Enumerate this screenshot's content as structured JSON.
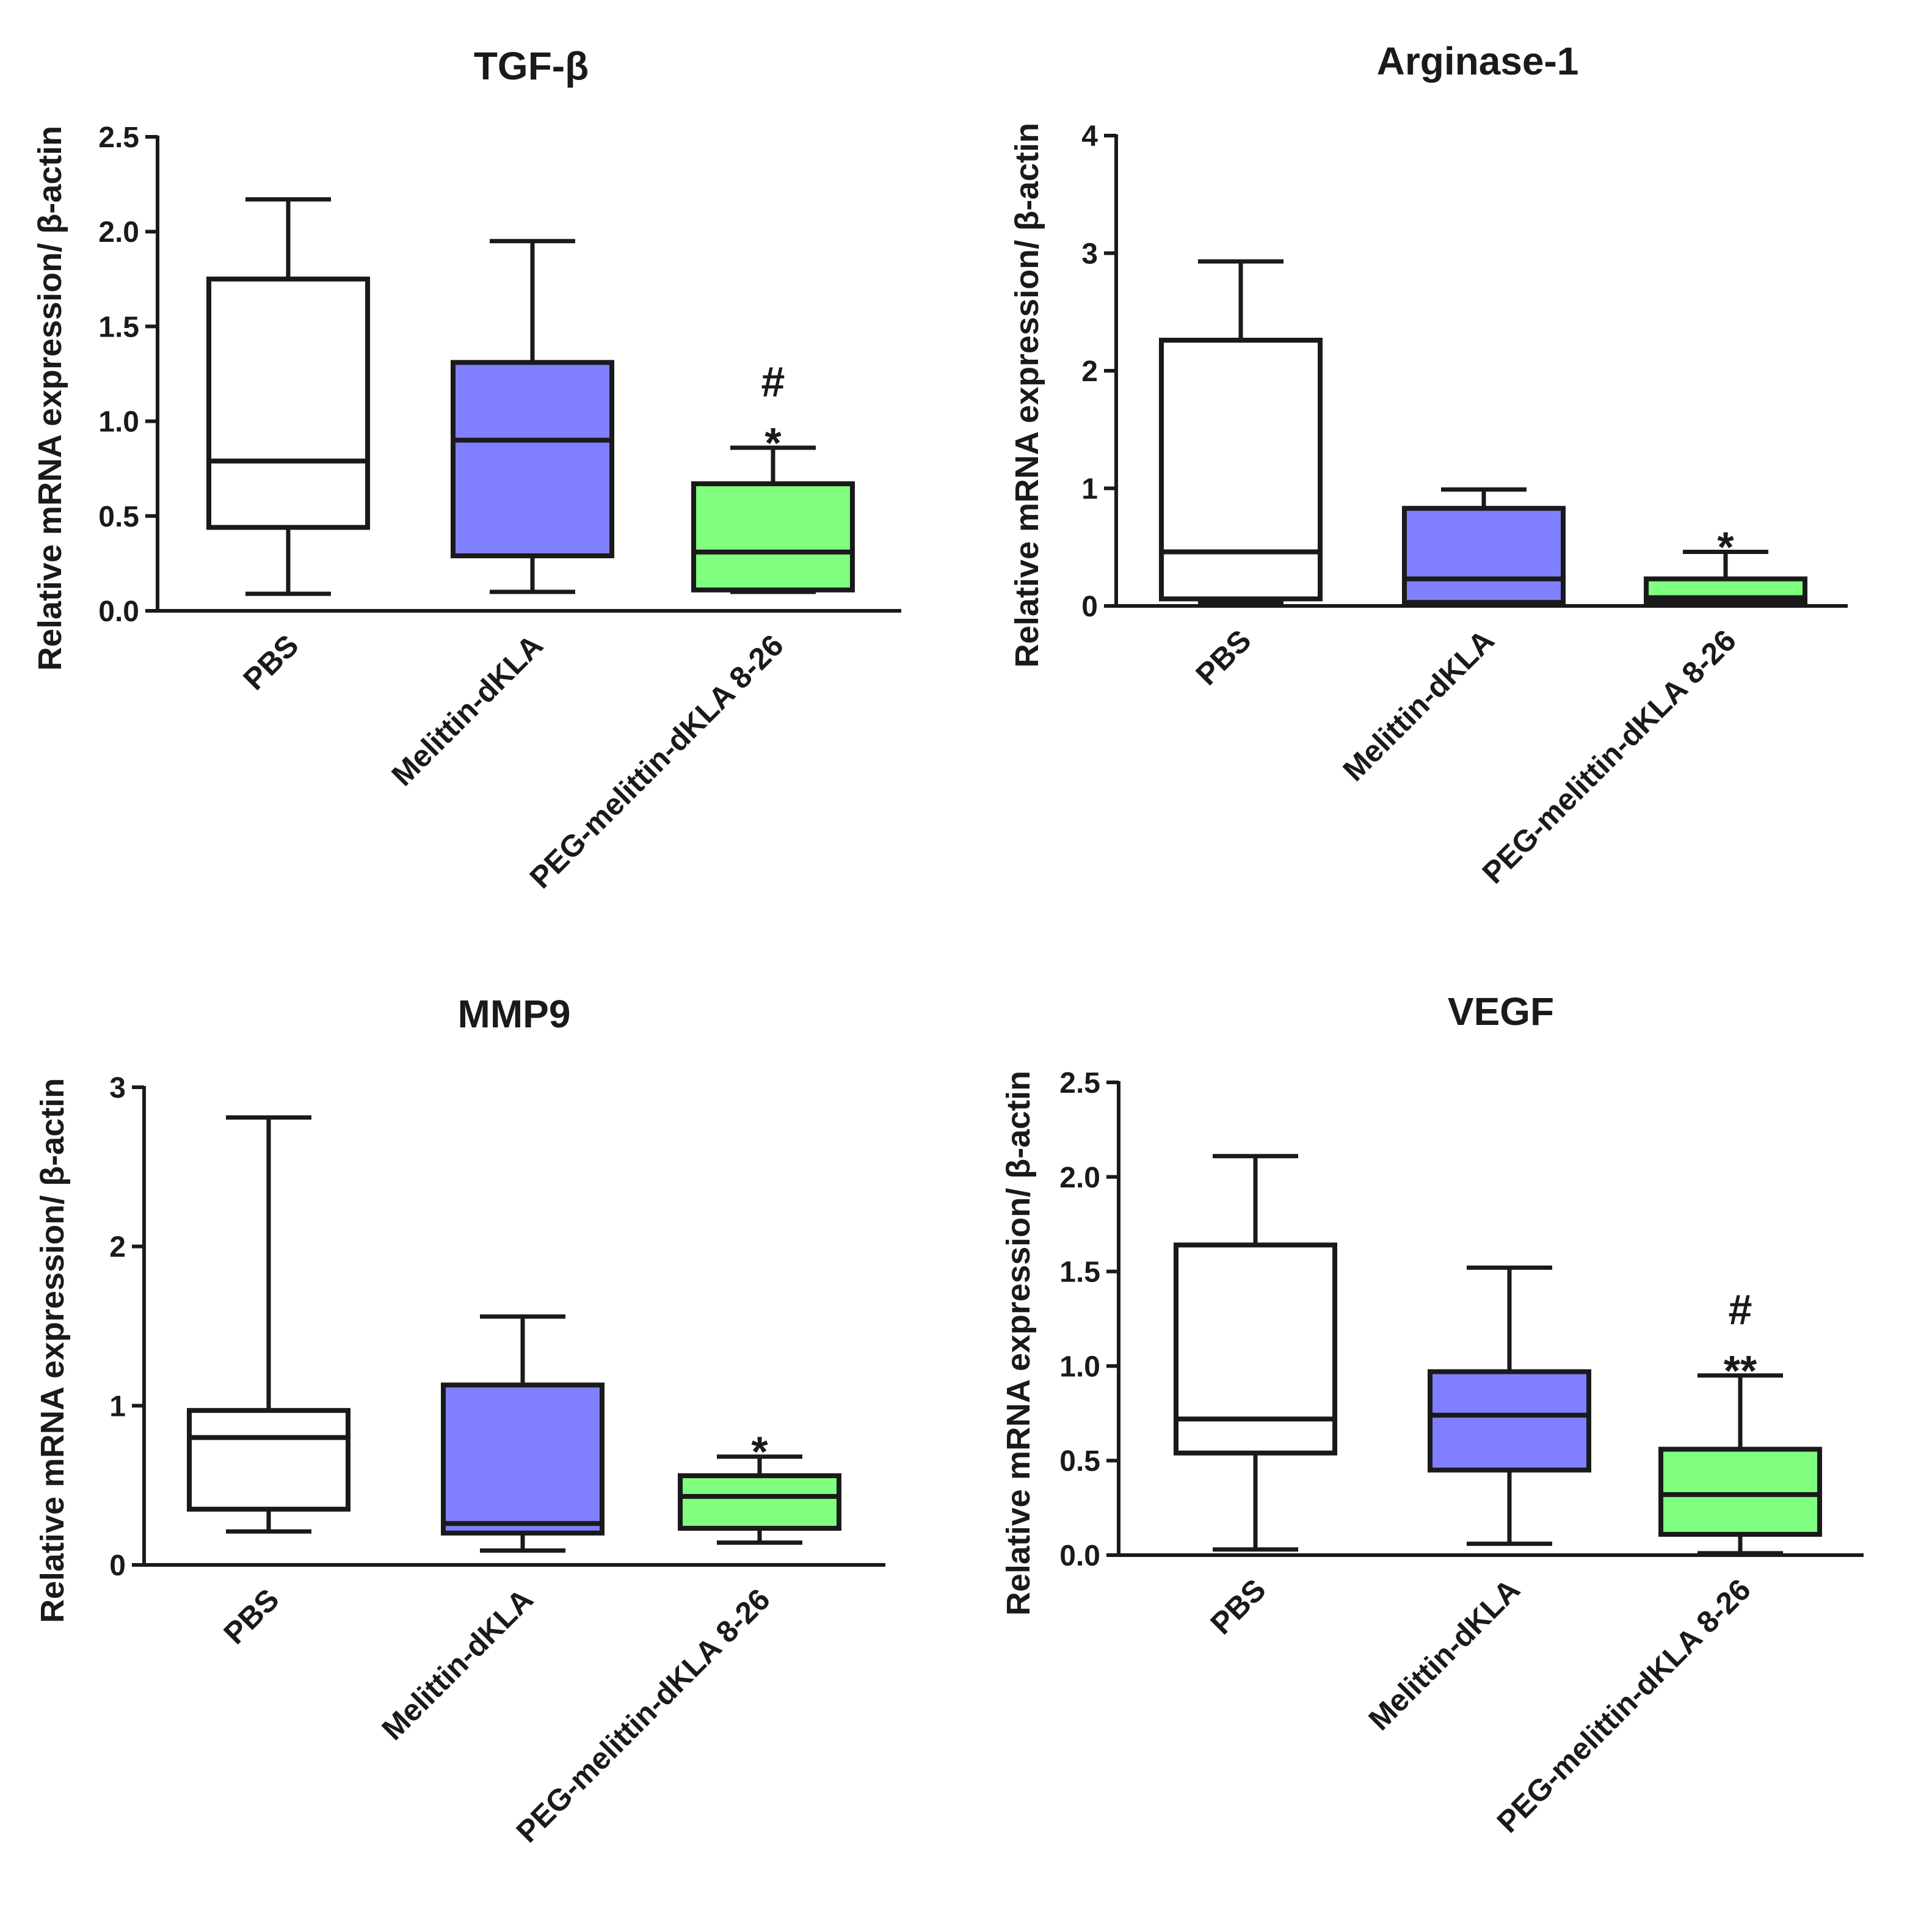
{
  "figure": {
    "ylabel": "Relative mRNA expression/ β-actin",
    "categories": [
      "PBS",
      "Melittin-dKLA",
      "PEG-melittin-dKLA 8-26"
    ],
    "colors": [
      "#ffffff",
      "#8080ff",
      "#80ff80"
    ]
  },
  "chart_data": [
    {
      "type": "box",
      "title": "TGF-β",
      "ylabel": "Relative mRNA expression/ β-actin",
      "ylim": [
        0,
        2.5
      ],
      "yticks": [
        "0.0",
        "0.5",
        "1.0",
        "1.5",
        "2.0",
        "2.5"
      ],
      "yticks_values": [
        0,
        0.5,
        1.0,
        1.5,
        2.0,
        2.5
      ],
      "categories": [
        "PBS",
        "Melittin-dKLA",
        "PEG-melittin-dKLA 8-26"
      ],
      "boxes": [
        {
          "min": 0.09,
          "q1": 0.44,
          "median": 0.79,
          "q3": 1.75,
          "max": 2.17
        },
        {
          "min": 0.1,
          "q1": 0.29,
          "median": 0.9,
          "q3": 1.31,
          "max": 1.95
        },
        {
          "min": 0.1,
          "q1": 0.11,
          "median": 0.31,
          "q3": 0.67,
          "max": 0.86
        }
      ],
      "annotations": [
        {
          "category": 2,
          "marks": [
            "#",
            "*"
          ]
        }
      ]
    },
    {
      "type": "box",
      "title": "Arginase-1",
      "ylabel": "Relative mRNA expression/ β-actin",
      "ylim": [
        0,
        4
      ],
      "yticks": [
        "0",
        "1",
        "2",
        "3",
        "4"
      ],
      "yticks_values": [
        0,
        1,
        2,
        3,
        4
      ],
      "categories": [
        "PBS",
        "Melittin-dKLA",
        "PEG-melittin-dKLA 8-26"
      ],
      "boxes": [
        {
          "min": 0.03,
          "q1": 0.06,
          "median": 0.46,
          "q3": 2.26,
          "max": 2.93
        },
        {
          "min": 0.03,
          "q1": 0.03,
          "median": 0.23,
          "q3": 0.83,
          "max": 0.99
        },
        {
          "min": 0.02,
          "q1": 0.03,
          "median": 0.07,
          "q3": 0.23,
          "max": 0.46
        }
      ],
      "annotations": [
        {
          "category": 2,
          "marks": [
            "*"
          ]
        }
      ]
    },
    {
      "type": "box",
      "title": "MMP9",
      "ylabel": "Relative mRNA expression/ β-actin",
      "ylim": [
        0,
        3
      ],
      "yticks": [
        "0",
        "1",
        "2",
        "3"
      ],
      "yticks_values": [
        0,
        1,
        2,
        3
      ],
      "categories": [
        "PBS",
        "Melittin-dKLA",
        "PEG-melittin-dKLA 8-26"
      ],
      "boxes": [
        {
          "min": 0.21,
          "q1": 0.35,
          "median": 0.8,
          "q3": 0.97,
          "max": 2.81
        },
        {
          "min": 0.09,
          "q1": 0.2,
          "median": 0.26,
          "q3": 1.13,
          "max": 1.56
        },
        {
          "min": 0.14,
          "q1": 0.23,
          "median": 0.43,
          "q3": 0.56,
          "max": 0.68
        }
      ],
      "annotations": [
        {
          "category": 2,
          "marks": [
            "*"
          ]
        }
      ]
    },
    {
      "type": "box",
      "title": "VEGF",
      "ylabel": "Relative mRNA expression/ β-actin",
      "ylim": [
        0,
        2.5
      ],
      "yticks": [
        "0.0",
        "0.5",
        "1.0",
        "1.5",
        "2.0",
        "2.5"
      ],
      "yticks_values": [
        0,
        0.5,
        1.0,
        1.5,
        2.0,
        2.5
      ],
      "categories": [
        "PBS",
        "Melittin-dKLA",
        "PEG-melittin-dKLA 8-26"
      ],
      "boxes": [
        {
          "min": 0.03,
          "q1": 0.54,
          "median": 0.72,
          "q3": 1.64,
          "max": 2.11
        },
        {
          "min": 0.06,
          "q1": 0.45,
          "median": 0.74,
          "q3": 0.97,
          "max": 1.52
        },
        {
          "min": 0.01,
          "q1": 0.11,
          "median": 0.32,
          "q3": 0.56,
          "max": 0.95
        }
      ],
      "annotations": [
        {
          "category": 2,
          "marks": [
            "#",
            "**"
          ]
        }
      ]
    }
  ]
}
